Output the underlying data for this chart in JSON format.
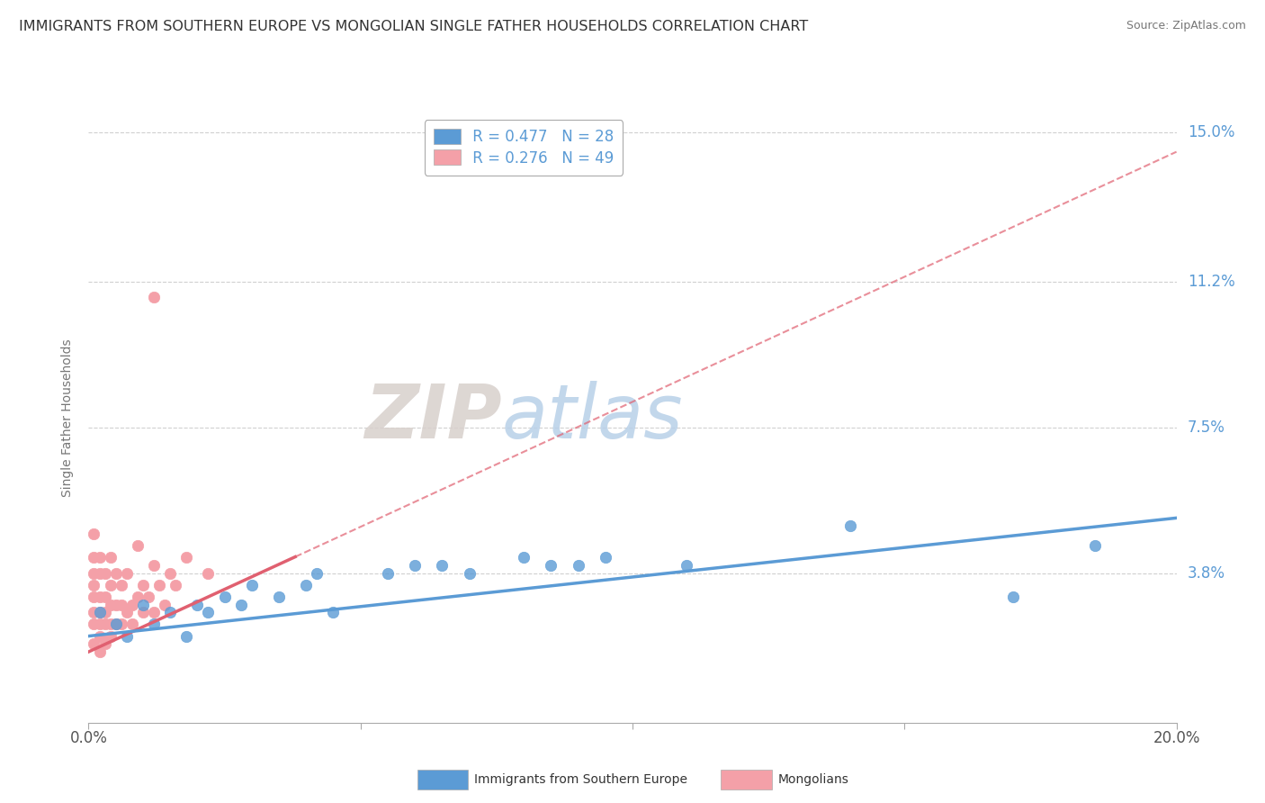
{
  "title": "IMMIGRANTS FROM SOUTHERN EUROPE VS MONGOLIAN SINGLE FATHER HOUSEHOLDS CORRELATION CHART",
  "source": "Source: ZipAtlas.com",
  "ylabel": "Single Father Households",
  "watermark_zip": "ZIP",
  "watermark_atlas": "atlas",
  "legend_blue_label": "Immigrants from Southern Europe",
  "legend_pink_label": "Mongolians",
  "legend_blue_r": "R = 0.477",
  "legend_blue_n": "N = 28",
  "legend_pink_r": "R = 0.276",
  "legend_pink_n": "N = 49",
  "xlim": [
    0.0,
    0.2
  ],
  "ylim": [
    0.0,
    0.155
  ],
  "ytick_labels_right": [
    "3.8%",
    "7.5%",
    "11.2%",
    "15.0%"
  ],
  "ytick_vals_right": [
    0.038,
    0.075,
    0.112,
    0.15
  ],
  "blue_color": "#5b9bd5",
  "pink_color": "#f4a0a8",
  "pink_line_color": "#e06070",
  "blue_scatter": [
    [
      0.002,
      0.028
    ],
    [
      0.005,
      0.025
    ],
    [
      0.007,
      0.022
    ],
    [
      0.01,
      0.03
    ],
    [
      0.012,
      0.025
    ],
    [
      0.015,
      0.028
    ],
    [
      0.018,
      0.022
    ],
    [
      0.02,
      0.03
    ],
    [
      0.022,
      0.028
    ],
    [
      0.025,
      0.032
    ],
    [
      0.028,
      0.03
    ],
    [
      0.03,
      0.035
    ],
    [
      0.035,
      0.032
    ],
    [
      0.04,
      0.035
    ],
    [
      0.042,
      0.038
    ],
    [
      0.045,
      0.028
    ],
    [
      0.055,
      0.038
    ],
    [
      0.06,
      0.04
    ],
    [
      0.065,
      0.04
    ],
    [
      0.07,
      0.038
    ],
    [
      0.08,
      0.042
    ],
    [
      0.085,
      0.04
    ],
    [
      0.09,
      0.04
    ],
    [
      0.095,
      0.042
    ],
    [
      0.11,
      0.04
    ],
    [
      0.14,
      0.05
    ],
    [
      0.17,
      0.032
    ],
    [
      0.185,
      0.045
    ]
  ],
  "pink_scatter": [
    [
      0.001,
      0.02
    ],
    [
      0.001,
      0.025
    ],
    [
      0.001,
      0.028
    ],
    [
      0.001,
      0.032
    ],
    [
      0.001,
      0.035
    ],
    [
      0.001,
      0.038
    ],
    [
      0.001,
      0.042
    ],
    [
      0.001,
      0.048
    ],
    [
      0.002,
      0.018
    ],
    [
      0.002,
      0.022
    ],
    [
      0.002,
      0.025
    ],
    [
      0.002,
      0.028
    ],
    [
      0.002,
      0.032
    ],
    [
      0.002,
      0.038
    ],
    [
      0.002,
      0.042
    ],
    [
      0.003,
      0.02
    ],
    [
      0.003,
      0.025
    ],
    [
      0.003,
      0.028
    ],
    [
      0.003,
      0.032
    ],
    [
      0.003,
      0.038
    ],
    [
      0.004,
      0.022
    ],
    [
      0.004,
      0.025
    ],
    [
      0.004,
      0.03
    ],
    [
      0.004,
      0.035
    ],
    [
      0.004,
      0.042
    ],
    [
      0.005,
      0.025
    ],
    [
      0.005,
      0.03
    ],
    [
      0.005,
      0.038
    ],
    [
      0.006,
      0.025
    ],
    [
      0.006,
      0.03
    ],
    [
      0.006,
      0.035
    ],
    [
      0.007,
      0.028
    ],
    [
      0.007,
      0.038
    ],
    [
      0.008,
      0.025
    ],
    [
      0.008,
      0.03
    ],
    [
      0.009,
      0.032
    ],
    [
      0.009,
      0.045
    ],
    [
      0.01,
      0.028
    ],
    [
      0.01,
      0.035
    ],
    [
      0.011,
      0.032
    ],
    [
      0.012,
      0.028
    ],
    [
      0.012,
      0.04
    ],
    [
      0.013,
      0.035
    ],
    [
      0.014,
      0.03
    ],
    [
      0.015,
      0.038
    ],
    [
      0.012,
      0.108
    ],
    [
      0.016,
      0.035
    ],
    [
      0.018,
      0.042
    ],
    [
      0.022,
      0.038
    ]
  ],
  "blue_trendline_x": [
    0.0,
    0.2
  ],
  "blue_trendline_y": [
    0.022,
    0.052
  ],
  "pink_trendline_x": [
    0.0,
    0.2
  ],
  "pink_trendline_y": [
    0.018,
    0.145
  ],
  "pink_trendline_solid_end": 0.038,
  "pink_trendline_solid_y_end": 0.048,
  "grid_color": "#d0d0d0",
  "background_color": "#ffffff",
  "title_fontsize": 11.5,
  "axis_label_fontsize": 10,
  "tick_fontsize": 12,
  "legend_fontsize": 12
}
